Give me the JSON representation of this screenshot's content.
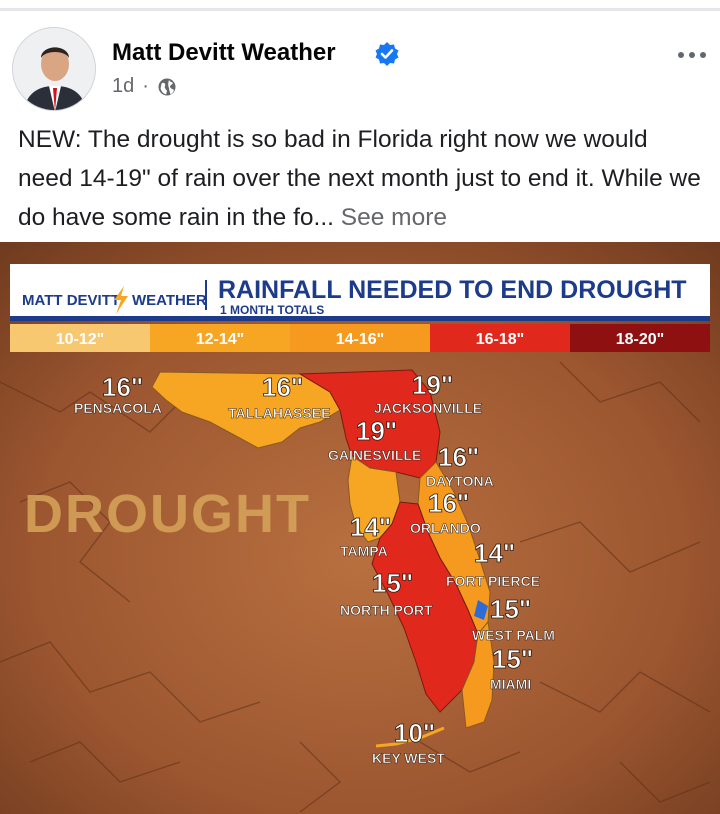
{
  "post": {
    "author": "Matt Devitt Weather",
    "time": "1d",
    "separator": "·",
    "text": "NEW: The drought is so bad in Florida right now we would need 14-19\" of rain over the next month just to end it. While we do have some rain in the fo... ",
    "see_more": "See more"
  },
  "graphic": {
    "brand_left": "MATT DEVITT",
    "brand_right": "WEATHER",
    "title": "RAINFALL NEEDED TO END DROUGHT",
    "subtitle": "1 MONTH TOTALS",
    "watermark": "DROUGHT",
    "legend": [
      {
        "label": "10-12\"",
        "color": "#f7c870"
      },
      {
        "label": "12-14\"",
        "color": "#f6a623"
      },
      {
        "label": "14-16\"",
        "color": "#f59a1e"
      },
      {
        "label": "16-18\"",
        "color": "#e0281c"
      },
      {
        "label": "18-20\"",
        "color": "#8f1010"
      }
    ],
    "cities": [
      {
        "value": "16\"",
        "name": "PENSACOLA"
      },
      {
        "value": "16\"",
        "name": "TALLAHASSEE"
      },
      {
        "value": "19\"",
        "name": "JACKSONVILLE"
      },
      {
        "value": "19\"",
        "name": "GAINESVILLE"
      },
      {
        "value": "16\"",
        "name": "DAYTONA"
      },
      {
        "value": "16\"",
        "name": "ORLANDO"
      },
      {
        "value": "14\"",
        "name": "TAMPA"
      },
      {
        "value": "14\"",
        "name": "FORT PIERCE"
      },
      {
        "value": "15\"",
        "name": "NORTH PORT"
      },
      {
        "value": "15\"",
        "name": "WEST PALM"
      },
      {
        "value": "15\"",
        "name": "MIAMI"
      },
      {
        "value": "10\"",
        "name": "KEY WEST"
      }
    ]
  }
}
